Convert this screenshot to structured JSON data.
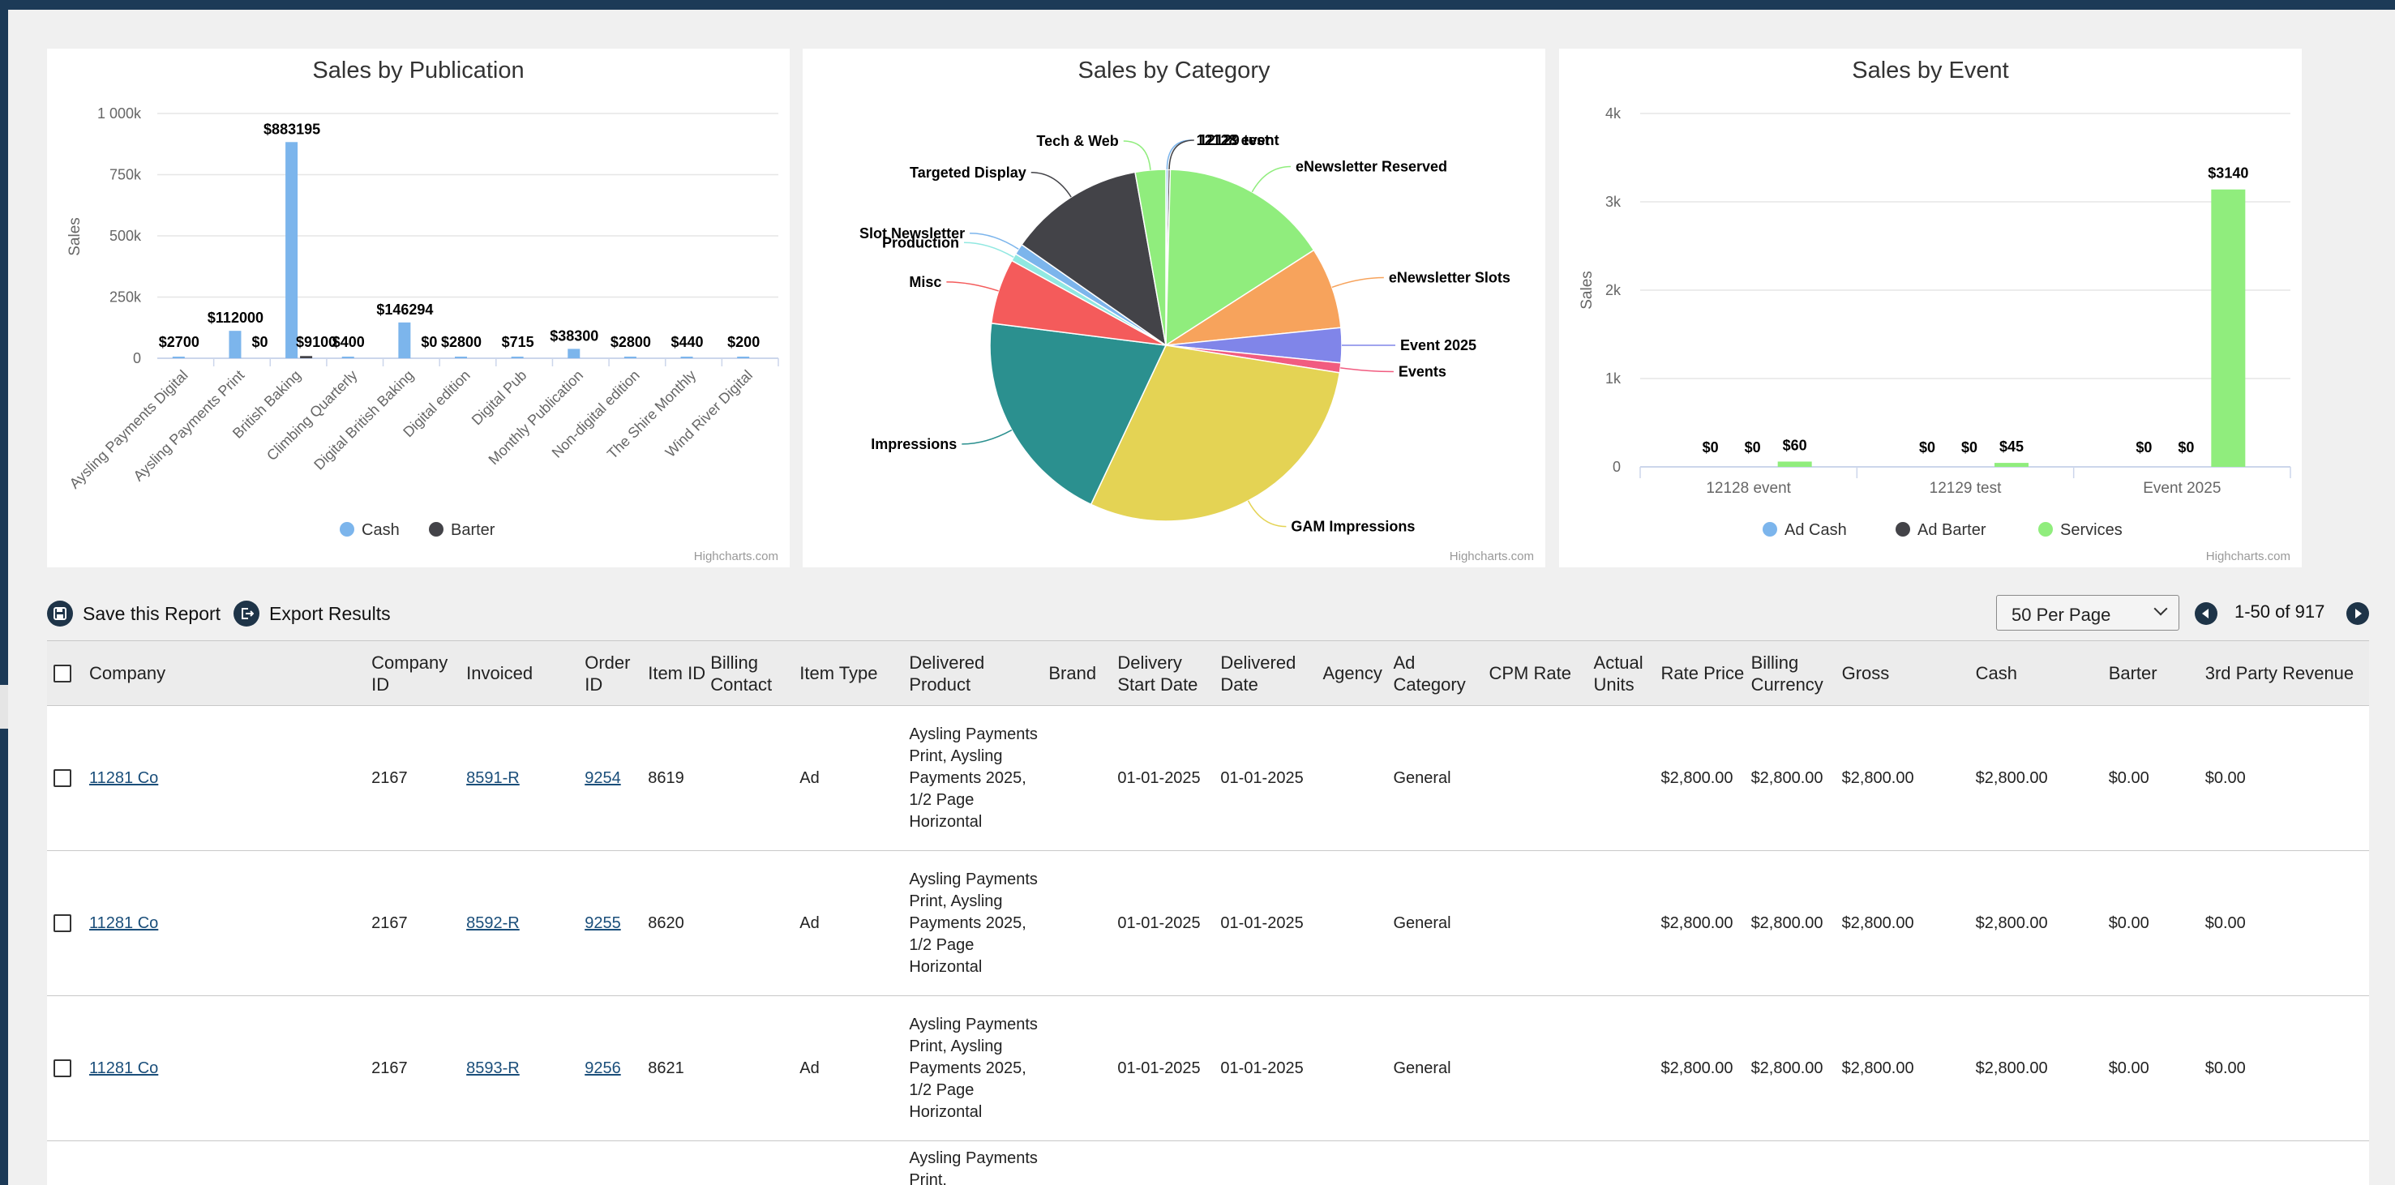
{
  "colors": {
    "navy": "#1c3a57",
    "cash": "#7cb5ec",
    "barter": "#434348",
    "services": "#90ed7d"
  },
  "charts": {
    "publication": {
      "title": "Sales by Publication",
      "ylabel": "Sales",
      "yticks": [
        "1 000k",
        "750k",
        "500k",
        "250k",
        "0"
      ],
      "legend": [
        "Cash",
        "Barter"
      ],
      "credit": "Highcharts.com"
    },
    "category": {
      "title": "Sales by Category",
      "credit": "Highcharts.com"
    },
    "event": {
      "title": "Sales by Event",
      "ylabel": "Sales",
      "yticks": [
        "4k",
        "3k",
        "2k",
        "1k",
        "0"
      ],
      "legend": [
        "Ad Cash",
        "Ad Barter",
        "Services"
      ],
      "credit": "Highcharts.com"
    }
  },
  "chart_data": [
    {
      "type": "bar",
      "title": "Sales by Publication",
      "ylabel": "Sales",
      "ylim": [
        0,
        1000000
      ],
      "categories": [
        "Aysling Payments Digital",
        "Aysling Payments Print",
        "British Baking",
        "Climbing Quarterly",
        "Digital British Baking",
        "Digital edition",
        "Digital Pub",
        "Monthly Publication",
        "Non-digital edition",
        "The Shire Monthly",
        "Wind River Digital"
      ],
      "series": [
        {
          "name": "Cash",
          "values": [
            2700,
            112000,
            883195,
            400,
            146294,
            2800,
            715,
            38300,
            2800,
            440,
            200
          ]
        },
        {
          "name": "Barter",
          "values": [
            null,
            0,
            9100,
            null,
            0,
            null,
            null,
            null,
            null,
            null,
            null
          ]
        }
      ],
      "labels": [
        {
          "cat": 0,
          "text": "$2700"
        },
        {
          "cat": 1,
          "text": "$112000"
        },
        {
          "cat": 1,
          "text": "$0"
        },
        {
          "cat": 2,
          "text": "$883195"
        },
        {
          "cat": 2,
          "text": "$9100"
        },
        {
          "cat": 3,
          "text": "$400"
        },
        {
          "cat": 4,
          "text": "$146294"
        },
        {
          "cat": 4,
          "text": "$0"
        },
        {
          "cat": 5,
          "text": "$2800"
        },
        {
          "cat": 6,
          "text": "$715"
        },
        {
          "cat": 7,
          "text": "$38300"
        },
        {
          "cat": 8,
          "text": "$2800"
        },
        {
          "cat": 9,
          "text": "$440"
        },
        {
          "cat": 10,
          "text": "$200"
        }
      ]
    },
    {
      "type": "pie",
      "title": "Sales by Category",
      "slices": [
        {
          "name": "12128 event",
          "value": 0.2,
          "color": "#7cb5ec"
        },
        {
          "name": "12129 test",
          "value": 0.2,
          "color": "#434348"
        },
        {
          "name": "eNewsletter Reserved",
          "value": 15.5,
          "color": "#90ed7d"
        },
        {
          "name": "eNewsletter Slots",
          "value": 7.5,
          "color": "#f7a35c"
        },
        {
          "name": "Event 2025",
          "value": 3.2,
          "color": "#8085e9"
        },
        {
          "name": "Events",
          "value": 0.9,
          "color": "#f15c80"
        },
        {
          "name": "GAM Impressions",
          "value": 29.5,
          "color": "#e4d354"
        },
        {
          "name": "Impressions",
          "value": 20.0,
          "color": "#2b908f"
        },
        {
          "name": "Misc",
          "value": 6.0,
          "color": "#f45b5b"
        },
        {
          "name": "Production",
          "value": 0.7,
          "color": "#91e8e1"
        },
        {
          "name": "Slot Newsletter",
          "value": 1.0,
          "color": "#7cb5ec"
        },
        {
          "name": "Targeted Display",
          "value": 12.5,
          "color": "#434348"
        },
        {
          "name": "Tech & Web",
          "value": 2.8,
          "color": "#90ed7d"
        }
      ]
    },
    {
      "type": "bar",
      "title": "Sales by Event",
      "ylabel": "Sales",
      "ylim": [
        0,
        4000
      ],
      "categories": [
        "12128 event",
        "12129 test",
        "Event 2025"
      ],
      "series": [
        {
          "name": "Ad Cash",
          "values": [
            0,
            0,
            0
          ]
        },
        {
          "name": "Ad Barter",
          "values": [
            0,
            0,
            0
          ]
        },
        {
          "name": "Services",
          "values": [
            60,
            45,
            3140
          ]
        }
      ],
      "labels": [
        {
          "cat": 0,
          "s": 0,
          "text": "$0"
        },
        {
          "cat": 0,
          "s": 1,
          "text": "$0"
        },
        {
          "cat": 0,
          "s": 2,
          "text": "$60"
        },
        {
          "cat": 1,
          "s": 0,
          "text": "$0"
        },
        {
          "cat": 1,
          "s": 1,
          "text": "$0"
        },
        {
          "cat": 1,
          "s": 2,
          "text": "$45"
        },
        {
          "cat": 2,
          "s": 0,
          "text": "$0"
        },
        {
          "cat": 2,
          "s": 1,
          "text": "$0"
        },
        {
          "cat": 2,
          "s": 2,
          "text": "$3140"
        }
      ]
    }
  ],
  "toolbar": {
    "save_label": "Save this Report",
    "export_label": "Export Results"
  },
  "pagination": {
    "per_page": "50 Per Page",
    "range": "1-50 of 917"
  },
  "table": {
    "headers": [
      {
        "key": "company",
        "label": "Company"
      },
      {
        "key": "company_id",
        "label": "Company ID"
      },
      {
        "key": "invoiced",
        "label": "Invoiced"
      },
      {
        "key": "order_id",
        "label": "Order ID"
      },
      {
        "key": "item_id",
        "label": "Item ID"
      },
      {
        "key": "billing_contact",
        "label": "Billing Contact"
      },
      {
        "key": "item_type",
        "label": "Item Type"
      },
      {
        "key": "delivered_product",
        "label": "Delivered Product"
      },
      {
        "key": "brand",
        "label": "Brand"
      },
      {
        "key": "delivery_start",
        "label": "Delivery Start Date"
      },
      {
        "key": "delivered_date",
        "label": "Delivered Date"
      },
      {
        "key": "agency",
        "label": "Agency"
      },
      {
        "key": "ad_category",
        "label": "Ad Category"
      },
      {
        "key": "cpm_rate",
        "label": "CPM Rate"
      },
      {
        "key": "actual_units",
        "label": "Actual Units"
      },
      {
        "key": "rate_price",
        "label": "Rate Price"
      },
      {
        "key": "billing_currency",
        "label": "Billing Currency"
      },
      {
        "key": "gross",
        "label": "Gross"
      },
      {
        "key": "cash",
        "label": "Cash"
      },
      {
        "key": "barter",
        "label": "Barter"
      },
      {
        "key": "third_party",
        "label": "3rd Party Revenue"
      }
    ],
    "rows": [
      {
        "company": "11281 Co",
        "company_id": "2167",
        "invoiced": "8591-R",
        "order_id": "9254",
        "item_id": "8619",
        "billing_contact": "",
        "item_type": "Ad",
        "delivered_product": "Aysling Payments Print, Aysling Payments 2025, 1/2 Page Horizontal",
        "brand": "",
        "delivery_start": "01-01-2025",
        "delivered_date": "01-01-2025",
        "agency": "",
        "ad_category": "General",
        "cpm_rate": "",
        "actual_units": "",
        "rate_price": "$2,800.00",
        "billing_currency": "$2,800.00",
        "gross": "$2,800.00",
        "cash": "$2,800.00",
        "barter": "$0.00",
        "third_party": "$0.00"
      },
      {
        "company": "11281 Co",
        "company_id": "2167",
        "invoiced": "8592-R",
        "order_id": "9255",
        "item_id": "8620",
        "billing_contact": "",
        "item_type": "Ad",
        "delivered_product": "Aysling Payments Print, Aysling Payments 2025, 1/2 Page Horizontal",
        "brand": "",
        "delivery_start": "01-01-2025",
        "delivered_date": "01-01-2025",
        "agency": "",
        "ad_category": "General",
        "cpm_rate": "",
        "actual_units": "",
        "rate_price": "$2,800.00",
        "billing_currency": "$2,800.00",
        "gross": "$2,800.00",
        "cash": "$2,800.00",
        "barter": "$0.00",
        "third_party": "$0.00"
      },
      {
        "company": "11281 Co",
        "company_id": "2167",
        "invoiced": "8593-R",
        "order_id": "9256",
        "item_id": "8621",
        "billing_contact": "",
        "item_type": "Ad",
        "delivered_product": "Aysling Payments Print, Aysling Payments 2025, 1/2 Page Horizontal",
        "brand": "",
        "delivery_start": "01-01-2025",
        "delivered_date": "01-01-2025",
        "agency": "",
        "ad_category": "General",
        "cpm_rate": "",
        "actual_units": "",
        "rate_price": "$2,800.00",
        "billing_currency": "$2,800.00",
        "gross": "$2,800.00",
        "cash": "$2,800.00",
        "barter": "$0.00",
        "third_party": "$0.00"
      },
      {
        "company": "",
        "company_id": "",
        "invoiced": "",
        "order_id": "",
        "item_id": "",
        "billing_contact": "",
        "item_type": "",
        "delivered_product": "Aysling Payments Print,",
        "brand": "",
        "delivery_start": "",
        "delivered_date": "",
        "agency": "",
        "ad_category": "",
        "cpm_rate": "",
        "actual_units": "",
        "rate_price": "",
        "billing_currency": "",
        "gross": "",
        "cash": "",
        "barter": "",
        "third_party": ""
      }
    ]
  }
}
